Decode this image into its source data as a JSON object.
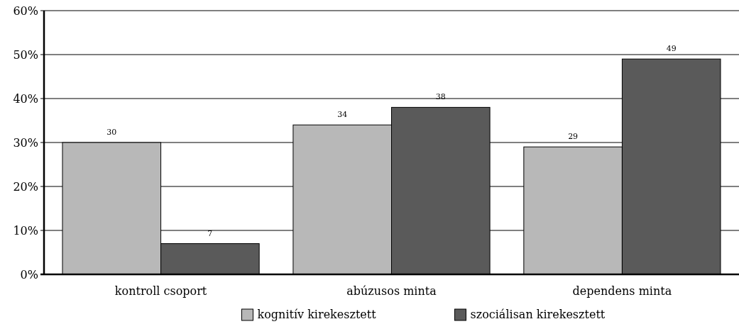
{
  "chart_data": {
    "type": "bar",
    "categories": [
      "kontroll csoport",
      "abúzusos minta",
      "dependens minta"
    ],
    "series": [
      {
        "name": "kognitív kirekesztett",
        "color": "#b8b8b8",
        "values": [
          30,
          34,
          29
        ]
      },
      {
        "name": "szociálisan kirekesztett",
        "color": "#5a5a5a",
        "values": [
          7,
          38,
          49
        ]
      }
    ],
    "ylim": [
      0,
      60
    ],
    "yticks": [
      {
        "value": 0,
        "label": "0%"
      },
      {
        "value": 10,
        "label": "10%"
      },
      {
        "value": 20,
        "label": "20%"
      },
      {
        "value": 30,
        "label": "30%"
      },
      {
        "value": 40,
        "label": "40%"
      },
      {
        "value": 50,
        "label": "50%"
      },
      {
        "value": 60,
        "label": "60%"
      }
    ],
    "grid": "y",
    "legend": "bottom",
    "data_labels": true
  }
}
